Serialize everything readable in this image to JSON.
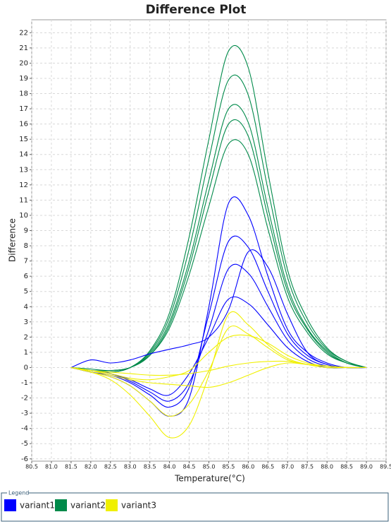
{
  "chart_data": {
    "type": "line",
    "title": "Difference Plot",
    "x_label": "Temperature(°C)",
    "y_label": "Difference",
    "legend_title": "Legend",
    "x": [
      81.5,
      82,
      82.5,
      83,
      83.5,
      84,
      84.5,
      85,
      85.5,
      86,
      86.5,
      87,
      87.5,
      88,
      88.5,
      89
    ],
    "series": [
      {
        "name": "variant1",
        "color": "#0000ff",
        "curves": [
          [
            0,
            -0.3,
            -0.6,
            -1.2,
            -2.2,
            -3.2,
            -2,
            4,
            10.8,
            10,
            6,
            2.5,
            1,
            0.3,
            0,
            0
          ],
          [
            0,
            -0.3,
            -0.5,
            -1,
            -1.8,
            -2.6,
            -1.3,
            3.5,
            8.3,
            7.9,
            5,
            2.2,
            0.8,
            0.2,
            0,
            0
          ],
          [
            0,
            -0.2,
            -0.4,
            -0.9,
            -1.6,
            -2.2,
            -1,
            2.5,
            6.5,
            6.2,
            4,
            1.8,
            0.6,
            0.1,
            0,
            0
          ],
          [
            0,
            -0.2,
            -0.4,
            -0.8,
            -1.4,
            -1.8,
            -0.4,
            2,
            4.5,
            4.2,
            2.8,
            1.3,
            0.4,
            0,
            0,
            0
          ],
          [
            0,
            0.5,
            0.3,
            0.5,
            0.9,
            1.2,
            1.5,
            2,
            3.8,
            7.6,
            6.6,
            3.5,
            1,
            0.2,
            0,
            0
          ]
        ]
      },
      {
        "name": "variant2",
        "color": "#008a4a",
        "curves": [
          [
            0,
            -0.2,
            -0.3,
            0,
            1.1,
            3.6,
            8.6,
            15,
            20.8,
            19.7,
            12.8,
            6.4,
            3.2,
            1.3,
            0.4,
            0
          ],
          [
            0,
            -0.2,
            -0.3,
            0,
            1,
            3.3,
            7.8,
            13.7,
            18.9,
            17.9,
            11.7,
            5.9,
            2.9,
            1.2,
            0.4,
            0
          ],
          [
            0,
            -0.2,
            -0.2,
            0,
            0.9,
            3,
            7,
            12.3,
            17,
            16.1,
            10.5,
            5.3,
            2.6,
            1.1,
            0.3,
            0
          ],
          [
            0,
            -0.2,
            -0.2,
            0,
            0.8,
            2.8,
            6.6,
            11.6,
            16,
            15.2,
            9.9,
            5,
            2.5,
            1,
            0.3,
            0
          ],
          [
            0,
            -0.1,
            -0.2,
            0,
            0.8,
            2.6,
            6.1,
            10.6,
            14.7,
            14,
            9.1,
            4.6,
            2.3,
            0.9,
            0.3,
            0
          ]
        ]
      },
      {
        "name": "variant3",
        "color": "#f0f000",
        "curves": [
          [
            0,
            -0.3,
            -0.8,
            -1.8,
            -3.2,
            -4.6,
            -3.8,
            -0.5,
            3.5,
            2.8,
            1.5,
            0.6,
            0.2,
            0,
            0,
            0
          ],
          [
            0,
            -0.3,
            -0.6,
            -1.2,
            -2.2,
            -3.2,
            -2.4,
            -0.2,
            2.6,
            2.2,
            1.3,
            0.5,
            0.2,
            0,
            0,
            0
          ],
          [
            0,
            -0.2,
            -0.4,
            -0.7,
            -0.8,
            -0.6,
            -0.2,
            1,
            2,
            2.1,
            1.6,
            0.8,
            0.3,
            0.1,
            0,
            0
          ],
          [
            0,
            -0.2,
            -0.5,
            -0.8,
            -1,
            -1.1,
            -1.2,
            -1.3,
            -1,
            -0.5,
            0,
            0.3,
            0.2,
            0.1,
            0,
            0
          ],
          [
            0,
            -0.2,
            -0.3,
            -0.4,
            -0.5,
            -0.5,
            -0.4,
            -0.2,
            0.1,
            0.3,
            0.4,
            0.4,
            0.2,
            0.1,
            0,
            0
          ]
        ]
      }
    ],
    "xlim": [
      80.5,
      89.5
    ],
    "xticks": [
      80.5,
      {
        "value": 81,
        "label": "81.0"
      },
      81.5,
      {
        "value": 82,
        "label": "82.0"
      },
      82.5,
      {
        "value": 83,
        "label": "83.0"
      },
      83.5,
      {
        "value": 84,
        "label": "84.0"
      },
      84.5,
      {
        "value": 85,
        "label": "85.0"
      },
      85.5,
      {
        "value": 86,
        "label": "86.0"
      },
      86.5,
      {
        "value": 87,
        "label": "87.0"
      },
      87.5,
      {
        "value": 88,
        "label": "88.0"
      },
      88.5,
      {
        "value": 89,
        "label": "89.0"
      },
      89.5
    ],
    "ylim": [
      -6.15,
      22.85
    ],
    "yticks": [
      -6,
      -5,
      -4,
      -3,
      -2,
      -1,
      0,
      1,
      2,
      3,
      4,
      5,
      6,
      7,
      8,
      9,
      10,
      11,
      12,
      13,
      14,
      15,
      16,
      17,
      18,
      19,
      20,
      21,
      22
    ],
    "grid": true
  }
}
